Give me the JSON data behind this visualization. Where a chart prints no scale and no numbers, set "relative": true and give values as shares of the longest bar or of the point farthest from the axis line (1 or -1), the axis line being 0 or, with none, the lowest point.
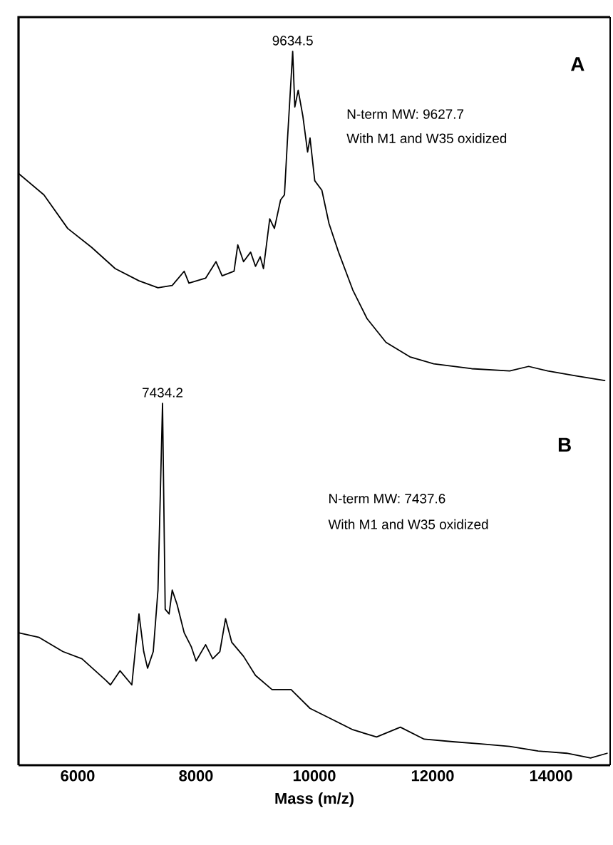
{
  "chart_data": [
    {
      "type": "line",
      "relative": true,
      "xlim": [
        5000,
        15000
      ],
      "tick_labels": false,
      "x": [
        5000,
        5429,
        5831,
        6233,
        6634,
        7036,
        7357,
        7598,
        7800,
        7880,
        8162,
        8338,
        8441,
        8643,
        8706,
        8803,
        8923,
        9005,
        9085,
        9140,
        9246,
        9325,
        9430,
        9495,
        9543,
        9634,
        9670,
        9727,
        9807,
        9886,
        9927,
        10007,
        10127,
        10248,
        10409,
        10650,
        10891,
        11211,
        11614,
        12016,
        12658,
        13302,
        13622,
        13945,
        14427,
        14909
      ],
      "series": [
        {
          "color": "#000000",
          "values": [
            0.629,
            0.564,
            0.462,
            0.405,
            0.34,
            0.303,
            0.282,
            0.289,
            0.332,
            0.296,
            0.311,
            0.361,
            0.318,
            0.332,
            0.412,
            0.361,
            0.39,
            0.347,
            0.376,
            0.34,
            0.491,
            0.462,
            0.549,
            0.564,
            0.723,
            1,
            0.831,
            0.882,
            0.802,
            0.694,
            0.737,
            0.607,
            0.578,
            0.477,
            0.39,
            0.275,
            0.188,
            0.116,
            0.072,
            0.051,
            0.036,
            0.029,
            0.043,
            0.029,
            0.014,
            0
          ]
        }
      ],
      "annotations": [
        {
          "text": "9634.5",
          "x": 9634.5,
          "y": 1
        },
        "A",
        "N-term MW: 9627.7",
        "With M1 and W35 oxidized"
      ]
    },
    {
      "type": "line",
      "relative": true,
      "xlim": [
        5000,
        15000
      ],
      "xticks": [
        6000,
        8000,
        10000,
        12000,
        14000
      ],
      "xlabel": "Mass (m/z)",
      "tick_labels": "x",
      "x": [
        5000,
        5349,
        5750,
        6072,
        6473,
        6554,
        6715,
        6915,
        7036,
        7116,
        7181,
        7277,
        7357,
        7434,
        7479,
        7545,
        7598,
        7680,
        7800,
        7921,
        8001,
        8162,
        8282,
        8403,
        8499,
        8603,
        8803,
        9005,
        9285,
        9607,
        9927,
        10248,
        10650,
        11052,
        11454,
        11856,
        12338,
        12820,
        13302,
        13784,
        14266,
        14669,
        14949
      ],
      "series": [
        {
          "color": "#000000",
          "values": [
            0.366,
            0.353,
            0.314,
            0.294,
            0.235,
            0.222,
            0.261,
            0.222,
            0.418,
            0.314,
            0.268,
            0.314,
            0.484,
            1,
            0.431,
            0.418,
            0.484,
            0.444,
            0.366,
            0.327,
            0.288,
            0.333,
            0.294,
            0.314,
            0.405,
            0.34,
            0.301,
            0.248,
            0.209,
            0.209,
            0.157,
            0.131,
            0.098,
            0.078,
            0.105,
            0.072,
            0.065,
            0.059,
            0.052,
            0.039,
            0.033,
            0.02,
            0.033
          ]
        }
      ],
      "annotations": [
        {
          "text": "7434.2",
          "x": 7434.2,
          "y": 1
        },
        "B",
        "N-term MW: 7437.6",
        "With M1 and W35 oxidized"
      ]
    }
  ]
}
